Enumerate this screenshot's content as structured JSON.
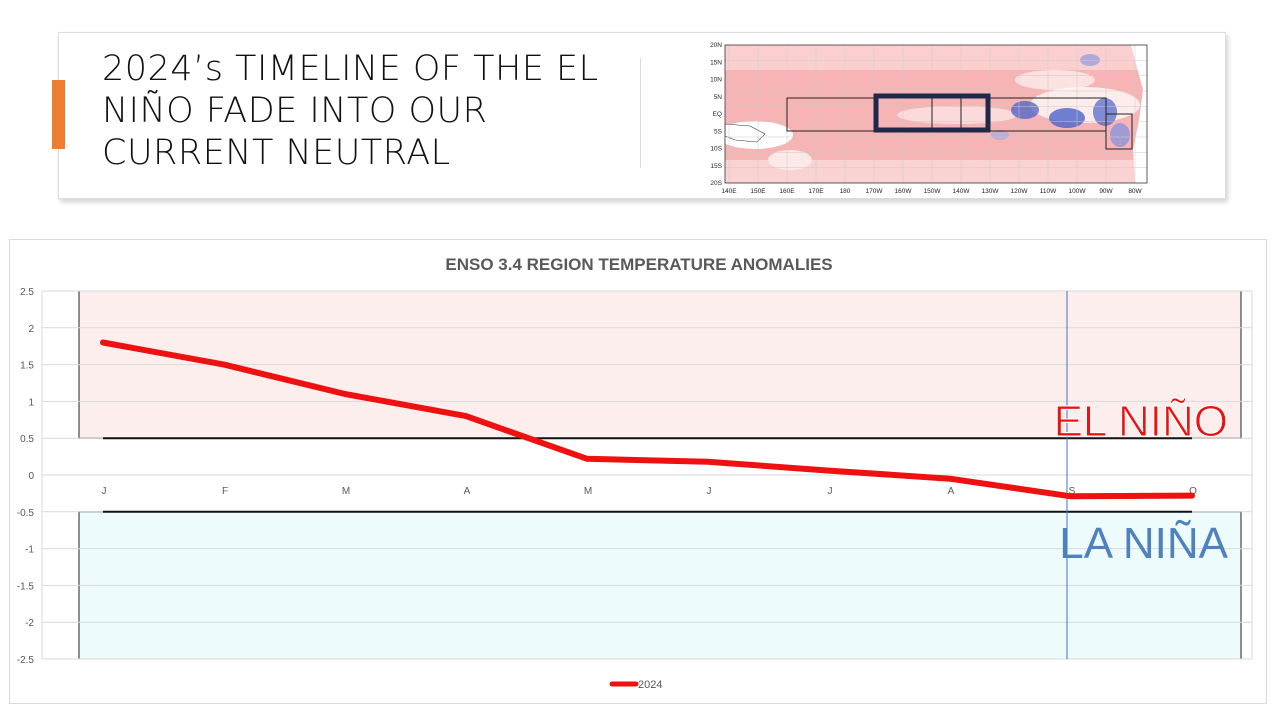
{
  "slide": {
    "title": "2024’s TIMELINE OF THE EL NIÑO FADE INTO OUR CURRENT NEUTRAL",
    "accent_color": "#ed7d31"
  },
  "map": {
    "lat_labels": [
      "20N",
      "15N",
      "10N",
      "5N",
      "EQ",
      "5S",
      "10S",
      "15S",
      "20S"
    ],
    "lon_labels": [
      "140E",
      "150E",
      "160E",
      "170E",
      "180",
      "170W",
      "160W",
      "150W",
      "140W",
      "130W",
      "120W",
      "110W",
      "100W",
      "90W",
      "80W"
    ],
    "warm_color": "#f4a2a2",
    "cool_color": "#4a63c9"
  },
  "chart_data": {
    "type": "line",
    "title": "ENSO 3.4 REGION TEMPERATURE ANOMALIES",
    "categories": [
      "J",
      "F",
      "M",
      "A",
      "M",
      "J",
      "J",
      "A",
      "S",
      "O"
    ],
    "series": [
      {
        "name": "2024",
        "values": [
          1.8,
          1.5,
          1.1,
          0.8,
          0.22,
          0.18,
          0.06,
          -0.05,
          -0.29,
          -0.28
        ],
        "color": "#ee1111"
      }
    ],
    "ylim": [
      -2.5,
      2.5
    ],
    "yticks": [
      2.5,
      2,
      1.5,
      1,
      0.5,
      0,
      -0.5,
      -1,
      -1.5,
      -2,
      -2.5
    ],
    "ytick_labels": [
      "2.5",
      "2",
      "1.5",
      "1",
      "0.5",
      "0",
      "-0.5",
      "-1",
      "-1.5",
      "-2",
      "-2.5"
    ],
    "thresholds": [
      0.5,
      -0.5
    ],
    "regions": [
      {
        "label": "EL NIÑO",
        "from": 0.5,
        "to": 2.5,
        "fill": "#fdeeee",
        "text_color": "#ee1111"
      },
      {
        "label": "LA NIÑA",
        "from": -2.5,
        "to": -0.5,
        "fill": "#eefbfd",
        "text_color": "#4f81bd"
      }
    ],
    "marker_category_index": 8,
    "grid": true,
    "legend": "bottom"
  }
}
